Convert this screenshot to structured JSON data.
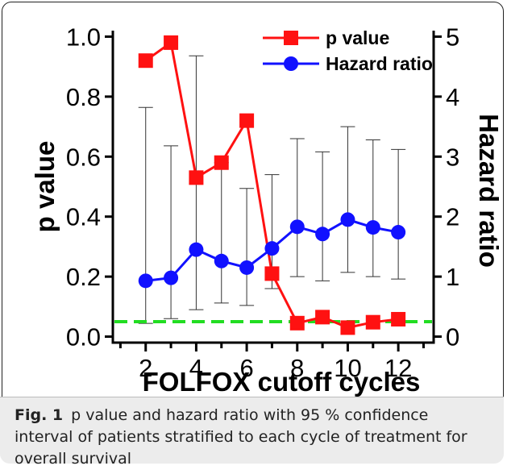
{
  "chart_data": {
    "type": "line",
    "xlabel": "FOLFOX cutoff cycles",
    "ylabel_left": "p value",
    "ylabel_right": "Hazard ratio",
    "x_ticks": [
      2,
      4,
      6,
      8,
      10,
      12
    ],
    "y_left_ticks": [
      "0.0",
      "0.2",
      "0.4",
      "0.6",
      "0.8",
      "1.0"
    ],
    "y_right_ticks": [
      "0",
      "1",
      "2",
      "3",
      "4",
      "5"
    ],
    "xlim": [
      0.7,
      13.4
    ],
    "ylim_left": [
      -0.02,
      1.02
    ],
    "ylim_right": [
      -0.1,
      5.1
    ],
    "grid": false,
    "legend_position": "top-right",
    "reference_line": {
      "y": 0.05,
      "axis": "left",
      "color": "#22dd22",
      "style": "dashed"
    },
    "series": [
      {
        "name": "p value",
        "axis": "left",
        "color": "#ff1111",
        "marker": "square",
        "x": [
          2,
          3,
          4,
          5,
          6,
          7,
          8,
          9,
          10,
          11,
          12
        ],
        "values": [
          0.92,
          0.98,
          0.53,
          0.58,
          0.72,
          0.21,
          0.045,
          0.065,
          0.03,
          0.048,
          0.058
        ]
      },
      {
        "name": "Hazard ratio",
        "axis": "right",
        "color": "#1111ff",
        "marker": "circle",
        "x": [
          2,
          3,
          4,
          5,
          6,
          7,
          8,
          9,
          10,
          11,
          12
        ],
        "values": [
          0.93,
          0.98,
          1.45,
          1.26,
          1.15,
          1.47,
          1.83,
          1.71,
          1.95,
          1.82,
          1.74
        ],
        "ci_lower": [
          0.22,
          0.3,
          0.45,
          0.56,
          0.52,
          0.8,
          1.0,
          0.93,
          1.07,
          1.0,
          0.96
        ],
        "ci_upper": [
          3.82,
          3.18,
          4.68,
          2.9,
          2.47,
          2.7,
          3.3,
          3.08,
          3.5,
          3.28,
          3.12
        ]
      }
    ]
  },
  "caption": {
    "label": "Fig. 1",
    "text": "p value and hazard ratio with 95 % confidence interval of patients stratified to each cycle of treatment for overall survival"
  }
}
